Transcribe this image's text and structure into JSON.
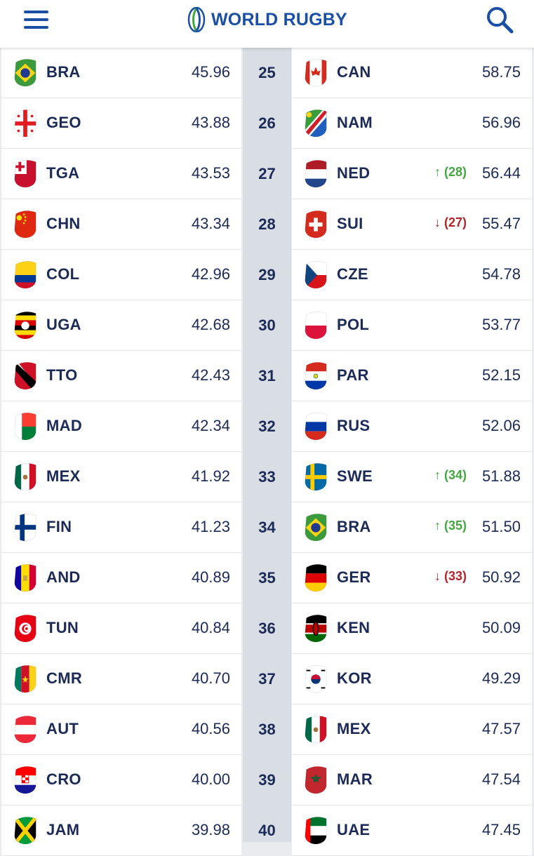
{
  "header": {
    "logo_text": "WORLD RUGBY",
    "accent": "#1b4fa6"
  },
  "rows": [
    {
      "rank": "25",
      "left": {
        "code": "BRA",
        "points": "45.96",
        "flag": "bra"
      },
      "right": {
        "code": "CAN",
        "points": "58.75",
        "flag": "can"
      }
    },
    {
      "rank": "26",
      "left": {
        "code": "GEO",
        "points": "43.88",
        "flag": "geo"
      },
      "right": {
        "code": "NAM",
        "points": "56.96",
        "flag": "nam"
      }
    },
    {
      "rank": "27",
      "left": {
        "code": "TGA",
        "points": "43.53",
        "flag": "tga"
      },
      "right": {
        "code": "NED",
        "points": "56.44",
        "flag": "ned",
        "move": "↑ (28)",
        "dir": "up"
      }
    },
    {
      "rank": "28",
      "left": {
        "code": "CHN",
        "points": "43.34",
        "flag": "chn"
      },
      "right": {
        "code": "SUI",
        "points": "55.47",
        "flag": "sui",
        "move": "↓ (27)",
        "dir": "down"
      }
    },
    {
      "rank": "29",
      "left": {
        "code": "COL",
        "points": "42.96",
        "flag": "col"
      },
      "right": {
        "code": "CZE",
        "points": "54.78",
        "flag": "cze"
      }
    },
    {
      "rank": "30",
      "left": {
        "code": "UGA",
        "points": "42.68",
        "flag": "uga"
      },
      "right": {
        "code": "POL",
        "points": "53.77",
        "flag": "pol"
      }
    },
    {
      "rank": "31",
      "left": {
        "code": "TTO",
        "points": "42.43",
        "flag": "tto"
      },
      "right": {
        "code": "PAR",
        "points": "52.15",
        "flag": "par"
      }
    },
    {
      "rank": "32",
      "left": {
        "code": "MAD",
        "points": "42.34",
        "flag": "mad"
      },
      "right": {
        "code": "RUS",
        "points": "52.06",
        "flag": "rus"
      }
    },
    {
      "rank": "33",
      "left": {
        "code": "MEX",
        "points": "41.92",
        "flag": "mex"
      },
      "right": {
        "code": "SWE",
        "points": "51.88",
        "flag": "swe",
        "move": "↑ (34)",
        "dir": "up"
      }
    },
    {
      "rank": "34",
      "left": {
        "code": "FIN",
        "points": "41.23",
        "flag": "fin"
      },
      "right": {
        "code": "BRA",
        "points": "51.50",
        "flag": "bra",
        "move": "↑ (35)",
        "dir": "up"
      }
    },
    {
      "rank": "35",
      "left": {
        "code": "AND",
        "points": "40.89",
        "flag": "and"
      },
      "right": {
        "code": "GER",
        "points": "50.92",
        "flag": "ger",
        "move": "↓ (33)",
        "dir": "down"
      }
    },
    {
      "rank": "36",
      "left": {
        "code": "TUN",
        "points": "40.84",
        "flag": "tun"
      },
      "right": {
        "code": "KEN",
        "points": "50.09",
        "flag": "ken"
      }
    },
    {
      "rank": "37",
      "left": {
        "code": "CMR",
        "points": "40.70",
        "flag": "cmr"
      },
      "right": {
        "code": "KOR",
        "points": "49.29",
        "flag": "kor"
      }
    },
    {
      "rank": "38",
      "left": {
        "code": "AUT",
        "points": "40.56",
        "flag": "aut"
      },
      "right": {
        "code": "MEX",
        "points": "47.57",
        "flag": "mex"
      }
    },
    {
      "rank": "39",
      "left": {
        "code": "CRO",
        "points": "40.00",
        "flag": "cro"
      },
      "right": {
        "code": "MAR",
        "points": "47.54",
        "flag": "mar"
      }
    },
    {
      "rank": "40",
      "left": {
        "code": "JAM",
        "points": "39.98",
        "flag": "jam"
      },
      "right": {
        "code": "UAE",
        "points": "47.45",
        "flag": "uae"
      }
    }
  ]
}
